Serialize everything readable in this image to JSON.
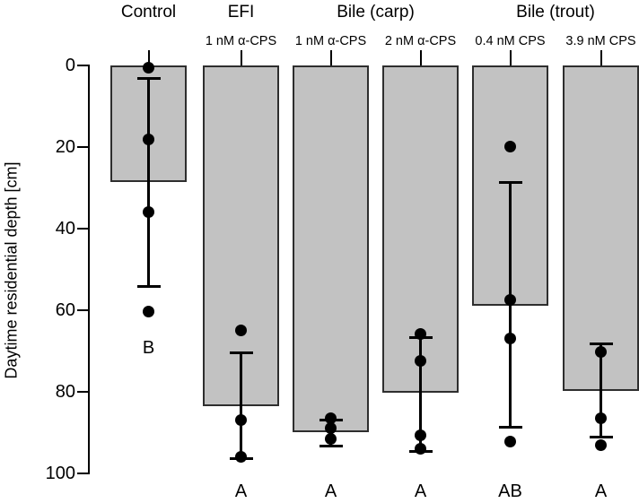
{
  "chart_data": {
    "type": "bar",
    "title": "",
    "ylabel": "Daytime residential depth [cm]",
    "xlabel": "",
    "ylim": [
      0,
      100
    ],
    "y_axis_inverted": true,
    "yticks": [
      0,
      20,
      40,
      60,
      80,
      100
    ],
    "grid": false,
    "legend": "none",
    "group_headers": [
      {
        "label": "Control",
        "bar_span": [
          0,
          0
        ]
      },
      {
        "label": "EFI",
        "bar_span": [
          1,
          1
        ]
      },
      {
        "label": "Bile (carp)",
        "bar_span": [
          2,
          3
        ]
      },
      {
        "label": "Bile (trout)",
        "bar_span": [
          4,
          5
        ]
      }
    ],
    "bars": [
      {
        "header": "Control",
        "dose_label": "",
        "mean_depth_cm": 28.6,
        "error_bar_cm": [
          3.1,
          54.1
        ],
        "points_cm": [
          0.5,
          18.2,
          36.0,
          60.2
        ],
        "sig_letter": "B",
        "letter_depth_cm": 69.2
      },
      {
        "header": "EFI",
        "dose_label": "1 nM α-CPS",
        "mean_depth_cm": 83.5,
        "error_bar_cm": [
          70.3,
          96.3
        ],
        "points_cm": [
          64.8,
          86.8,
          95.9
        ],
        "sig_letter": "A",
        "letter_depth_cm": 104.4
      },
      {
        "header": "Bile (carp)",
        "dose_label": "1 nM α-CPS",
        "mean_depth_cm": 89.9,
        "error_bar_cm": [
          86.8,
          93.2
        ],
        "points_cm": [
          86.4,
          88.8,
          91.4
        ],
        "sig_letter": "A",
        "letter_depth_cm": 104.4
      },
      {
        "header": "Bile (carp)",
        "dose_label": "2 nM α-CPS",
        "mean_depth_cm": 80.2,
        "error_bar_cm": [
          66.6,
          94.5
        ],
        "points_cm": [
          65.7,
          72.3,
          90.5,
          94.0
        ],
        "sig_letter": "A",
        "letter_depth_cm": 104.4
      },
      {
        "header": "Bile (trout)",
        "dose_label": "0.4 nM CPS",
        "mean_depth_cm": 58.8,
        "error_bar_cm": [
          28.6,
          88.6
        ],
        "points_cm": [
          19.8,
          57.4,
          66.8,
          92.1
        ],
        "sig_letter": "AB",
        "letter_depth_cm": 104.4
      },
      {
        "header": "Bile (trout)",
        "dose_label": "3.9 nM CPS",
        "mean_depth_cm": 79.8,
        "error_bar_cm": [
          68.1,
          91.0
        ],
        "points_cm": [
          70.1,
          86.4,
          93.0
        ],
        "sig_letter": "A",
        "letter_depth_cm": 104.4
      }
    ],
    "colors": {
      "bar_fill": "#c2c2c2",
      "bar_border": "#2e2e2e",
      "points": "#000000",
      "error_bars": "#000000",
      "axis": "#000000",
      "text": "#000000",
      "background": "#ffffff"
    }
  }
}
